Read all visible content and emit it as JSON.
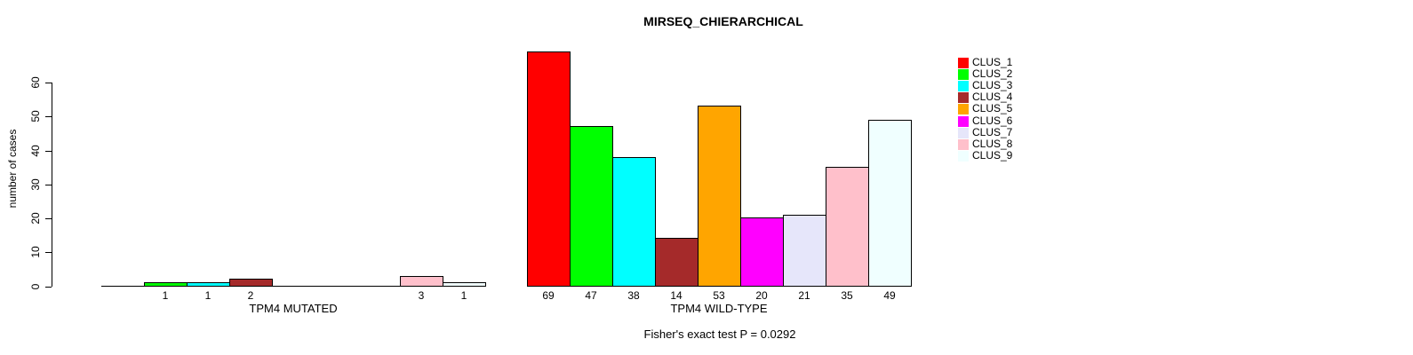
{
  "chart_data": {
    "type": "bar",
    "title": "MIRSEQ_CHIERARCHICAL",
    "ylabel": "number of cases",
    "categories": [
      "TPM4 MUTATED",
      "TPM4 WILD-TYPE"
    ],
    "series": [
      {
        "name": "CLUS_1",
        "color": "#FF0000",
        "values": [
          0,
          69
        ]
      },
      {
        "name": "CLUS_2",
        "color": "#00FF00",
        "values": [
          1,
          47
        ]
      },
      {
        "name": "CLUS_3",
        "color": "#00FFFF",
        "values": [
          1,
          38
        ]
      },
      {
        "name": "CLUS_4",
        "color": "#A52A2A",
        "values": [
          2,
          14
        ]
      },
      {
        "name": "CLUS_5",
        "color": "#FFA500",
        "values": [
          0,
          53
        ]
      },
      {
        "name": "CLUS_6",
        "color": "#FF00FF",
        "values": [
          0,
          20
        ]
      },
      {
        "name": "CLUS_7",
        "color": "#E6E6FA",
        "values": [
          0,
          21
        ]
      },
      {
        "name": "CLUS_8",
        "color": "#FFC0CB",
        "values": [
          3,
          35
        ]
      },
      {
        "name": "CLUS_9",
        "color": "#F0FFFF",
        "values": [
          1,
          49
        ]
      }
    ],
    "yticks": [
      0,
      10,
      20,
      30,
      40,
      50,
      60
    ],
    "ylim": [
      0,
      60
    ],
    "grid": false,
    "legend_position": "right",
    "bar_border_color": "#000000",
    "value_labels": {
      "TPM4 MUTATED": [
        null,
        1,
        1,
        2,
        null,
        null,
        null,
        3,
        1
      ],
      "TPM4 WILD-TYPE": [
        69,
        47,
        38,
        14,
        53,
        20,
        21,
        35,
        49
      ]
    },
    "annotation": "Fisher's exact test P = 0.0292"
  }
}
